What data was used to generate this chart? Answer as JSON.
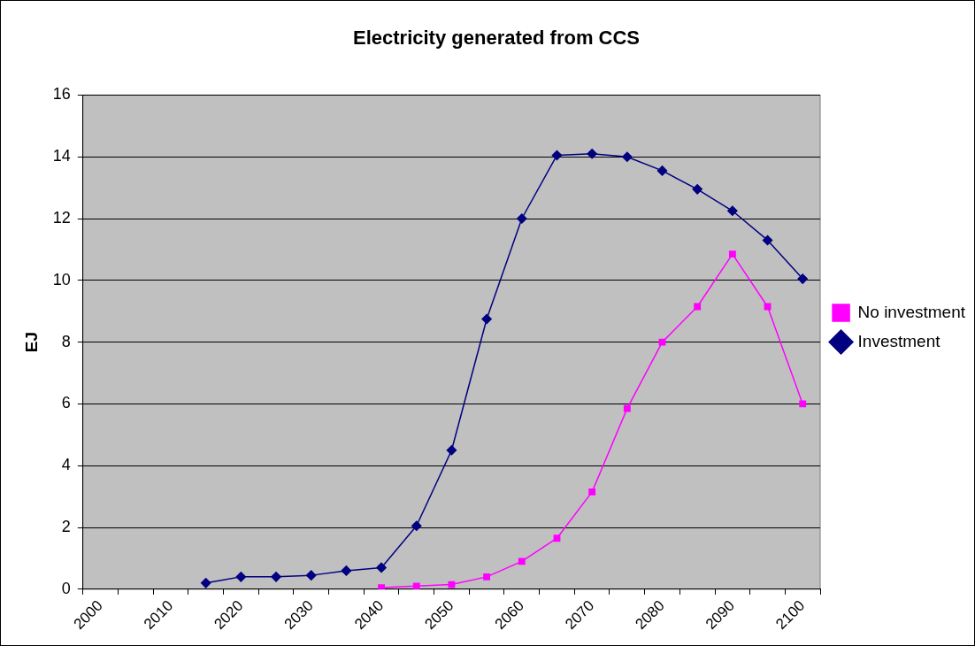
{
  "chart_data": {
    "type": "line",
    "title": "Electricity generated from CCS",
    "ylabel": "EJ",
    "categories": [
      "2000",
      null,
      "2010",
      null,
      "2020",
      null,
      "2030",
      null,
      "2040",
      null,
      "2050",
      null,
      "2060",
      null,
      "2070",
      null,
      "2080",
      null,
      "2090",
      null,
      "2100"
    ],
    "series": [
      {
        "name": "No investment",
        "color": "#ff00ff",
        "marker": "square",
        "values": [
          null,
          null,
          null,
          null,
          null,
          null,
          null,
          null,
          0.05,
          0.1,
          0.15,
          0.4,
          0.9,
          1.65,
          3.15,
          5.85,
          8.0,
          9.15,
          10.85,
          9.15,
          6.0
        ]
      },
      {
        "name": "Investment",
        "color": "#000080",
        "marker": "diamond",
        "values": [
          null,
          null,
          null,
          0.2,
          0.4,
          0.4,
          0.45,
          0.6,
          0.7,
          2.05,
          4.5,
          8.75,
          12.0,
          14.05,
          14.1,
          14.0,
          13.55,
          12.95,
          12.25,
          11.3,
          10.05
        ]
      }
    ],
    "ylim": [
      0,
      16
    ],
    "yticks": [
      0,
      2,
      4,
      6,
      8,
      10,
      12,
      14,
      16
    ],
    "grid": "y",
    "legend": "right",
    "line_style": "solid"
  }
}
